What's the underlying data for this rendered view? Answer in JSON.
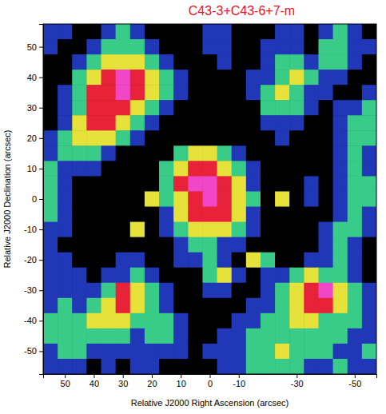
{
  "chart_data": {
    "type": "heatmap",
    "title": "C43-3+C43-6+7-m",
    "color": "#e8102a",
    "x_label": "Relative J2000 Right Ascension (arcsec)",
    "y_label": "Relative J2000 Declination (arcsec)",
    "x": [
      55,
      50,
      45,
      40,
      35,
      30,
      25,
      20,
      15,
      10,
      5,
      0,
      -5,
      -10,
      -15,
      -20,
      -25,
      -30,
      -35,
      -40,
      -45,
      -50,
      -55
    ],
    "y": [
      55,
      50,
      45,
      40,
      35,
      30,
      25,
      20,
      15,
      10,
      5,
      0,
      -5,
      -10,
      -15,
      -20,
      -25,
      -30,
      -35,
      -40,
      -45,
      -50,
      -55
    ],
    "z": [
      [
        1,
        1,
        0,
        0,
        1,
        2,
        1,
        0,
        0,
        0,
        0,
        1,
        1,
        0,
        0,
        0,
        1,
        1,
        0,
        1,
        2,
        1,
        0
      ],
      [
        1,
        0,
        0,
        1,
        2,
        2,
        2,
        1,
        0,
        0,
        0,
        1,
        1,
        0,
        0,
        1,
        1,
        1,
        0,
        2,
        2,
        1,
        1
      ],
      [
        0,
        0,
        1,
        2,
        3,
        3,
        3,
        2,
        1,
        0,
        0,
        0,
        1,
        0,
        0,
        1,
        2,
        2,
        1,
        2,
        2,
        1,
        0
      ],
      [
        0,
        0,
        2,
        3,
        4,
        5,
        4,
        3,
        2,
        1,
        0,
        0,
        0,
        0,
        1,
        1,
        2,
        3,
        2,
        1,
        1,
        0,
        0
      ],
      [
        0,
        1,
        2,
        4,
        4,
        5,
        4,
        3,
        2,
        1,
        0,
        0,
        0,
        0,
        1,
        2,
        3,
        2,
        1,
        1,
        0,
        0,
        1
      ],
      [
        0,
        1,
        2,
        4,
        4,
        4,
        3,
        2,
        1,
        0,
        0,
        0,
        0,
        0,
        0,
        2,
        2,
        2,
        1,
        0,
        1,
        1,
        2
      ],
      [
        0,
        1,
        3,
        4,
        4,
        3,
        2,
        1,
        0,
        0,
        0,
        0,
        0,
        0,
        0,
        1,
        1,
        1,
        0,
        0,
        1,
        2,
        2
      ],
      [
        1,
        2,
        3,
        3,
        3,
        2,
        1,
        0,
        0,
        0,
        0,
        0,
        0,
        0,
        0,
        0,
        1,
        0,
        0,
        0,
        1,
        2,
        2
      ],
      [
        1,
        2,
        2,
        2,
        1,
        0,
        0,
        0,
        0,
        2,
        3,
        3,
        2,
        1,
        0,
        0,
        0,
        0,
        0,
        0,
        1,
        2,
        1
      ],
      [
        2,
        1,
        1,
        1,
        0,
        0,
        0,
        0,
        2,
        3,
        4,
        4,
        3,
        2,
        1,
        0,
        0,
        0,
        0,
        0,
        1,
        2,
        1
      ],
      [
        2,
        1,
        0,
        0,
        0,
        0,
        0,
        0,
        2,
        4,
        5,
        5,
        4,
        3,
        1,
        0,
        0,
        0,
        1,
        0,
        1,
        2,
        2
      ],
      [
        2,
        1,
        0,
        0,
        0,
        0,
        0,
        3,
        2,
        3,
        4,
        5,
        4,
        3,
        2,
        0,
        3,
        0,
        1,
        0,
        1,
        2,
        2
      ],
      [
        2,
        1,
        0,
        0,
        0,
        0,
        0,
        0,
        1,
        3,
        4,
        4,
        4,
        3,
        1,
        0,
        0,
        0,
        0,
        0,
        1,
        2,
        1
      ],
      [
        1,
        1,
        0,
        0,
        0,
        0,
        3,
        0,
        1,
        2,
        3,
        3,
        3,
        2,
        1,
        0,
        0,
        0,
        0,
        1,
        2,
        2,
        1
      ],
      [
        1,
        0,
        0,
        0,
        0,
        0,
        0,
        0,
        0,
        1,
        2,
        2,
        1,
        1,
        0,
        0,
        0,
        0,
        0,
        1,
        2,
        1,
        0
      ],
      [
        1,
        1,
        0,
        0,
        0,
        1,
        1,
        0,
        0,
        1,
        1,
        2,
        1,
        0,
        3,
        2,
        0,
        0,
        1,
        1,
        2,
        1,
        0
      ],
      [
        1,
        1,
        1,
        0,
        1,
        1,
        2,
        1,
        0,
        0,
        0,
        2,
        3,
        1,
        0,
        1,
        1,
        2,
        3,
        2,
        2,
        1,
        0
      ],
      [
        1,
        1,
        1,
        1,
        2,
        4,
        3,
        2,
        1,
        0,
        0,
        1,
        1,
        0,
        0,
        1,
        2,
        3,
        4,
        5,
        3,
        2,
        1
      ],
      [
        1,
        2,
        1,
        2,
        3,
        4,
        3,
        2,
        1,
        0,
        0,
        0,
        0,
        0,
        1,
        1,
        2,
        3,
        4,
        4,
        3,
        2,
        1
      ],
      [
        2,
        2,
        2,
        3,
        3,
        3,
        2,
        2,
        2,
        1,
        0,
        0,
        0,
        1,
        1,
        2,
        2,
        3,
        3,
        2,
        2,
        2,
        1
      ],
      [
        2,
        2,
        2,
        2,
        2,
        2,
        1,
        2,
        2,
        1,
        0,
        0,
        1,
        1,
        2,
        2,
        2,
        2,
        2,
        2,
        2,
        1,
        1
      ],
      [
        1,
        2,
        2,
        1,
        1,
        1,
        1,
        1,
        1,
        1,
        0,
        1,
        1,
        1,
        2,
        2,
        3,
        2,
        2,
        2,
        1,
        1,
        2
      ],
      [
        1,
        1,
        1,
        0,
        1,
        0,
        1,
        1,
        0,
        0,
        0,
        0,
        1,
        1,
        2,
        2,
        2,
        2,
        1,
        1,
        2,
        1,
        1
      ]
    ],
    "zlim": [
      0,
      5
    ],
    "colors": [
      "#000000",
      "#2038b8",
      "#38cc88",
      "#e6e23a",
      "#e82238",
      "#f046c8"
    ],
    "xlim": [
      57.5,
      -57.5
    ],
    "ylim": [
      -57.5,
      57.5
    ],
    "xticks": [
      50,
      40,
      30,
      20,
      10,
      0,
      -10,
      -30,
      -50
    ],
    "yticks": [
      50,
      40,
      30,
      20,
      10,
      0,
      -10,
      -20,
      -30,
      -40,
      -50
    ]
  }
}
